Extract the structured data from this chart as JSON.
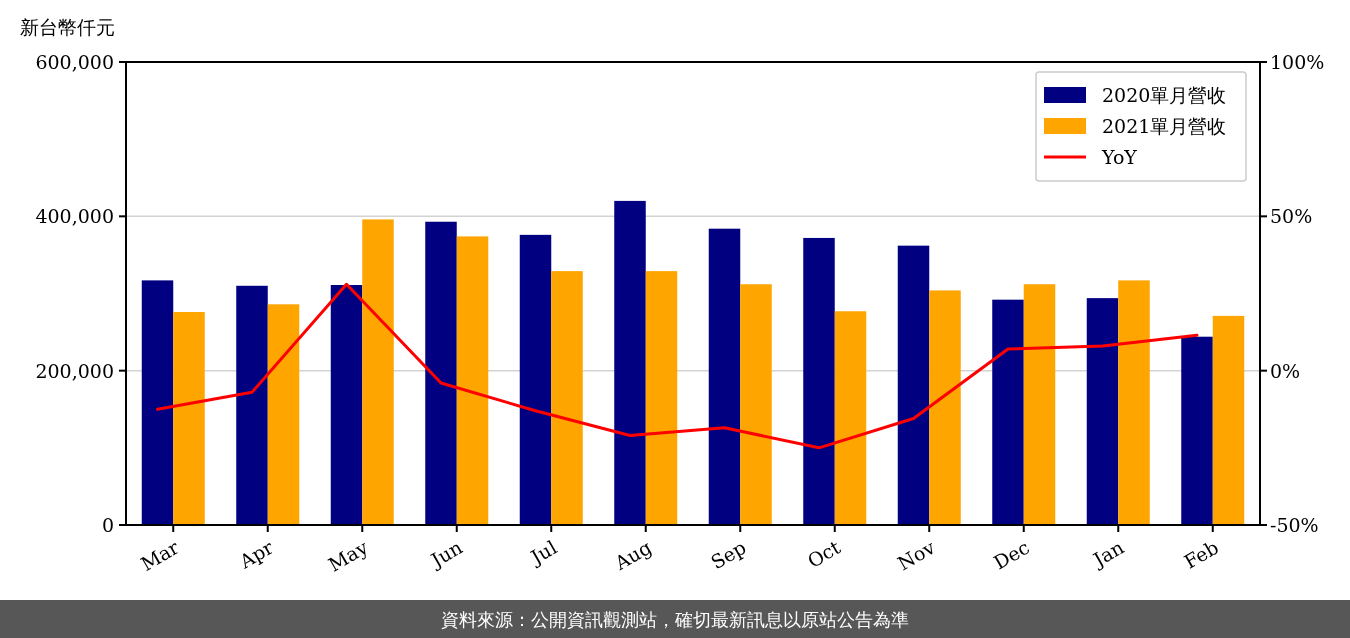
{
  "chart_data": {
    "type": "bar",
    "ylabel": "新台幣仟元",
    "categories": [
      "Mar",
      "Apr",
      "May",
      "Jun",
      "Jul",
      "Aug",
      "Sep",
      "Oct",
      "Nov",
      "Dec",
      "Jan",
      "Feb"
    ],
    "series": [
      {
        "name": "2020單月營收",
        "color": "#000080",
        "values": [
          317000,
          310000,
          311000,
          393000,
          376000,
          420000,
          384000,
          372000,
          362000,
          292000,
          294000,
          244000
        ]
      },
      {
        "name": "2021單月營收",
        "color": "#ffa500",
        "values": [
          276000,
          286000,
          396000,
          374000,
          329000,
          329000,
          312000,
          277000,
          304000,
          312000,
          317000,
          271000
        ]
      },
      {
        "name": "YoY",
        "type": "line",
        "axis": "y2",
        "color": "#ff0000",
        "values": [
          -12.5,
          -7,
          28,
          -4,
          -13,
          -21,
          -18.5,
          -25,
          -15.5,
          7,
          8,
          11.5
        ]
      }
    ],
    "ylim": [
      0,
      600000
    ],
    "yticks": [
      {
        "value": 0,
        "label": "0"
      },
      {
        "value": 200000,
        "label": "200,000"
      },
      {
        "value": 400000,
        "label": "400,000"
      },
      {
        "value": 600000,
        "label": "600,000"
      }
    ],
    "y2lim": [
      -50,
      100
    ],
    "y2ticks": [
      {
        "value": -50,
        "label": "-50%"
      },
      {
        "value": 0,
        "label": "0%"
      },
      {
        "value": 50,
        "label": "50%"
      },
      {
        "value": 100,
        "label": "100%"
      }
    ],
    "grid": "y",
    "legend": "top right",
    "annotations": [
      "資料來源：公開資訊觀測站，確切最新訊息以原站公告為準"
    ]
  }
}
